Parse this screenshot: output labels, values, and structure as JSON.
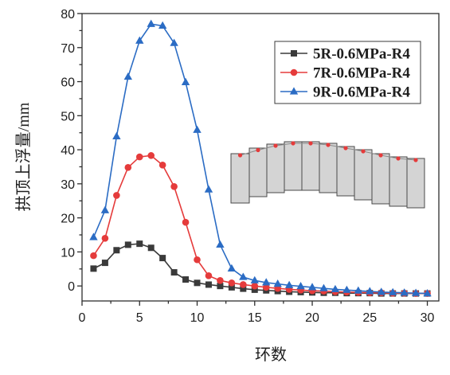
{
  "chart_data": {
    "type": "line",
    "xlabel": "环数",
    "ylabel": "拱顶上浮量/mm",
    "xlim": [
      0,
      31
    ],
    "ylim": [
      -4.4,
      80
    ],
    "x_ticks": [
      0,
      5,
      10,
      15,
      20,
      25,
      30
    ],
    "y_ticks": [
      0,
      10,
      20,
      30,
      40,
      50,
      60,
      70,
      80
    ],
    "grid": false,
    "legend_placement": "top-right",
    "x": [
      1,
      2,
      3,
      4,
      5,
      6,
      7,
      8,
      9,
      10,
      11,
      12,
      13,
      14,
      15,
      16,
      17,
      18,
      19,
      20,
      21,
      22,
      23,
      24,
      25,
      26,
      27,
      28,
      29,
      30
    ],
    "series": [
      {
        "name": "5R-0.6MPa-R4",
        "color": "#3a3a3a",
        "marker": "square",
        "values": [
          5.1,
          6.8,
          10.5,
          12.1,
          12.4,
          11.2,
          8.2,
          4.0,
          1.9,
          0.9,
          0.4,
          0.0,
          -0.4,
          -0.8,
          -1.1,
          -1.3,
          -1.5,
          -1.7,
          -1.8,
          -1.9,
          -2.0,
          -2.0,
          -2.1,
          -2.1,
          -2.1,
          -2.2,
          -2.2,
          -2.2,
          -2.2,
          -2.2
        ]
      },
      {
        "name": "7R-0.6MPa-R4",
        "color": "#e53b3b",
        "marker": "circle",
        "values": [
          8.9,
          14.0,
          26.6,
          34.8,
          37.9,
          38.3,
          35.5,
          29.2,
          18.7,
          7.7,
          3.0,
          1.6,
          0.9,
          0.4,
          0.0,
          -0.4,
          -0.7,
          -1.0,
          -1.2,
          -1.4,
          -1.5,
          -1.7,
          -1.8,
          -1.9,
          -2.0,
          -2.0,
          -2.1,
          -2.1,
          -2.2,
          -2.2
        ]
      },
      {
        "name": "9R-0.6MPa-R4",
        "color": "#2b6cc4",
        "marker": "triangle",
        "values": [
          14.3,
          22.2,
          43.9,
          61.4,
          72.0,
          76.9,
          76.4,
          71.3,
          59.8,
          45.8,
          28.3,
          12.1,
          5.1,
          2.6,
          1.6,
          1.0,
          0.6,
          0.2,
          -0.1,
          -0.4,
          -0.7,
          -1.0,
          -1.2,
          -1.4,
          -1.6,
          -1.8,
          -1.9,
          -2.0,
          -2.1,
          -2.2
        ]
      }
    ]
  },
  "inset": {
    "icon": "segmented-tunnel-lining-icon",
    "segment_fill": "#d4d4d4",
    "dot_color": "#e53b3b"
  }
}
